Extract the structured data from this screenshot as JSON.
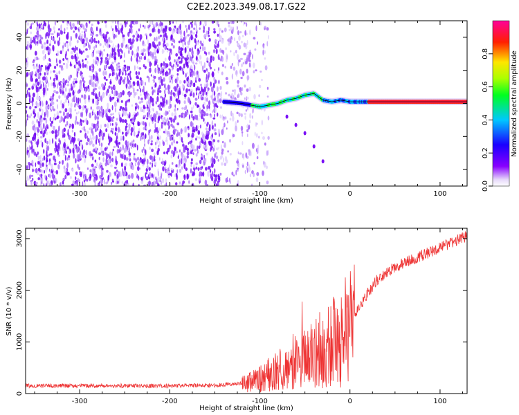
{
  "title": "C2E2.2023.349.08.17.G22",
  "colors": {
    "snr_line": "#ee3333",
    "ridge_line": "#000000",
    "speckle": "#7700ee",
    "background": "#ffffff"
  },
  "chart_data": [
    {
      "type": "heatmap",
      "xlabel": "Height of straight line (km)",
      "ylabel": "Frequency (Hz)",
      "xlim": [
        -360,
        130
      ],
      "ylim": [
        -50,
        50
      ],
      "xticks": [
        -300,
        -200,
        -100,
        0,
        100
      ],
      "yticks": [
        -40,
        -20,
        0,
        20,
        40
      ],
      "colormap": "hsv-like (violet-blue-cyan-green-yellow-red-pink)",
      "colorbar": {
        "label": "Normalized spectral amplitude",
        "range": [
          0,
          1
        ],
        "ticks": [
          "0.0",
          "0.2",
          "0.4",
          "0.6",
          "0.8"
        ]
      },
      "ridge": {
        "x": [
          -140,
          -120,
          -100,
          -90,
          -80,
          -70,
          -60,
          -50,
          -40,
          -30,
          -20,
          -10,
          0,
          20,
          40,
          60,
          80,
          100,
          130
        ],
        "y": [
          1,
          0,
          -2,
          -1,
          0,
          2,
          3,
          5,
          6,
          2,
          1,
          2,
          1,
          1,
          1,
          1,
          1,
          1,
          1
        ]
      },
      "side_branch": {
        "x": [
          -70,
          -60,
          -50,
          -40,
          -30
        ],
        "y": [
          -8,
          -13,
          -18,
          -26,
          -35
        ]
      }
    },
    {
      "type": "line",
      "xlabel": "Height of straight line (km)",
      "ylabel": "SNR (10 * v/v)",
      "xlim": [
        -360,
        130
      ],
      "ylim": [
        0,
        3200
      ],
      "xticks": [
        -300,
        -200,
        -100,
        0,
        100
      ],
      "yticks": [
        0,
        1000,
        2000,
        3000
      ],
      "series": [
        {
          "x": [
            -360,
            -300,
            -250,
            -200,
            -150,
            -120,
            -100,
            -80,
            -60,
            -40,
            -30,
            -20,
            -10,
            0,
            10,
            20,
            30,
            50,
            70,
            90,
            110,
            130
          ],
          "values": [
            150,
            150,
            150,
            150,
            160,
            200,
            280,
            450,
            650,
            750,
            850,
            950,
            1100,
            1300,
            1650,
            1950,
            2200,
            2450,
            2600,
            2750,
            2900,
            3050
          ]
        }
      ]
    }
  ]
}
